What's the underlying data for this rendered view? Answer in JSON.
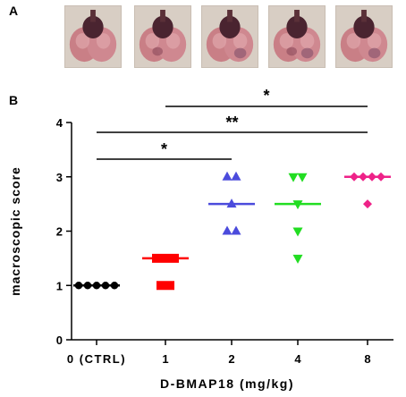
{
  "panels": {
    "a": "A",
    "b": "B"
  },
  "photos": [
    {
      "name": "lung-photo-1"
    },
    {
      "name": "lung-photo-2"
    },
    {
      "name": "lung-photo-3"
    },
    {
      "name": "lung-photo-4"
    },
    {
      "name": "lung-photo-5"
    }
  ],
  "chart_data": {
    "type": "scatter",
    "categories": [
      "0 (CTRL)",
      "1",
      "2",
      "4",
      "8"
    ],
    "xlabel": "D-BMAP18 (mg/kg)",
    "ylabel": "macroscopic score",
    "ylim": [
      0,
      4
    ],
    "yticks": [
      "0",
      "1",
      "2",
      "3",
      "4"
    ],
    "series": [
      {
        "category": "0 (CTRL)",
        "marker": "circle",
        "color": "#000000",
        "values": [
          1,
          1,
          1,
          1,
          1
        ],
        "median": 1
      },
      {
        "category": "1",
        "marker": "square",
        "color": "#ff0000",
        "values": [
          1.5,
          1.5,
          1.5,
          1,
          1
        ],
        "median": 1.5
      },
      {
        "category": "2",
        "marker": "triangle-up",
        "color": "#4b4bdc",
        "values": [
          3,
          3,
          2.5,
          2,
          2
        ],
        "median": 2.5
      },
      {
        "category": "4",
        "marker": "triangle-down",
        "color": "#22dd22",
        "values": [
          3,
          3,
          2.5,
          2,
          1.5
        ],
        "median": 2.5
      },
      {
        "category": "8",
        "marker": "diamond",
        "color": "#ee2288",
        "values": [
          3,
          3,
          3,
          3,
          2.5
        ],
        "median": 3
      }
    ],
    "significance": [
      {
        "from": "0 (CTRL)",
        "to": "2",
        "label": "*"
      },
      {
        "from": "0 (CTRL)",
        "to": "8",
        "label": "**"
      },
      {
        "from": "1",
        "to": "8",
        "label": "*"
      }
    ]
  }
}
